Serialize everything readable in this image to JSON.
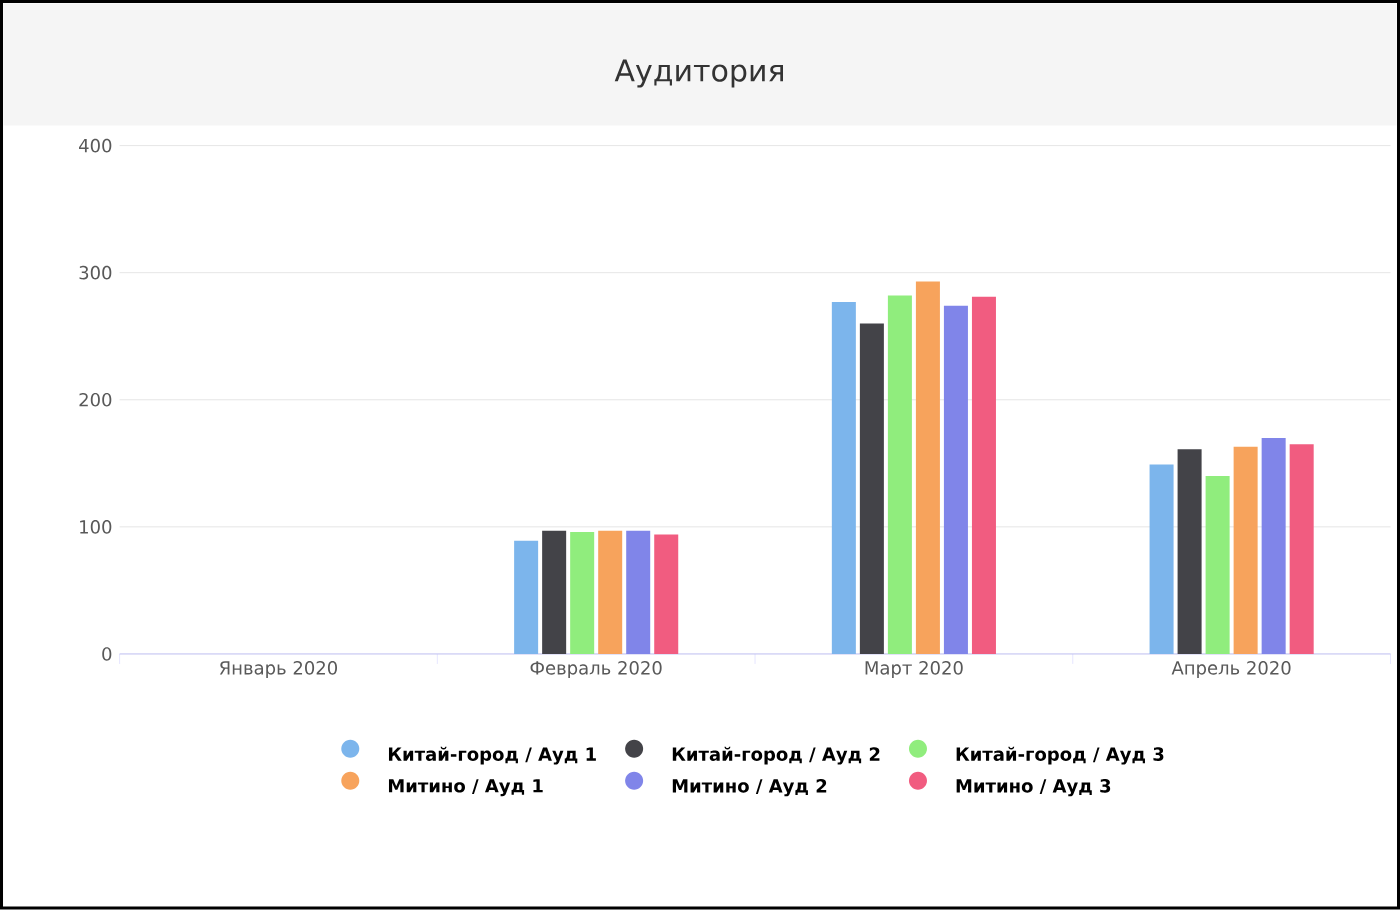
{
  "chart_data": {
    "type": "bar",
    "title": "Аудитория",
    "categories": [
      "Январь 2020",
      "Февраль 2020",
      "Март 2020",
      "Апрель 2020"
    ],
    "series": [
      {
        "name": "Китай-город / Ауд 1",
        "color": "#7cb5ec",
        "values": [
          null,
          89,
          277,
          149
        ]
      },
      {
        "name": "Китай-город / Ауд 2",
        "color": "#434348",
        "values": [
          null,
          97,
          260,
          161
        ]
      },
      {
        "name": "Китай-город / Ауд 3",
        "color": "#90ed7d",
        "values": [
          null,
          96,
          282,
          140
        ]
      },
      {
        "name": "Митино / Ауд 1",
        "color": "#f7a35c",
        "values": [
          null,
          97,
          293,
          163
        ]
      },
      {
        "name": "Митино / Ауд 2",
        "color": "#8085e9",
        "values": [
          null,
          97,
          274,
          170
        ]
      },
      {
        "name": "Митино / Ауд 3",
        "color": "#f15c80",
        "values": [
          null,
          94,
          281,
          165
        ]
      }
    ],
    "ylim": [
      0,
      400
    ],
    "yticks": [
      0,
      100,
      200,
      300,
      400
    ],
    "grid": "y",
    "legend": "bottom",
    "marker": "circle"
  }
}
